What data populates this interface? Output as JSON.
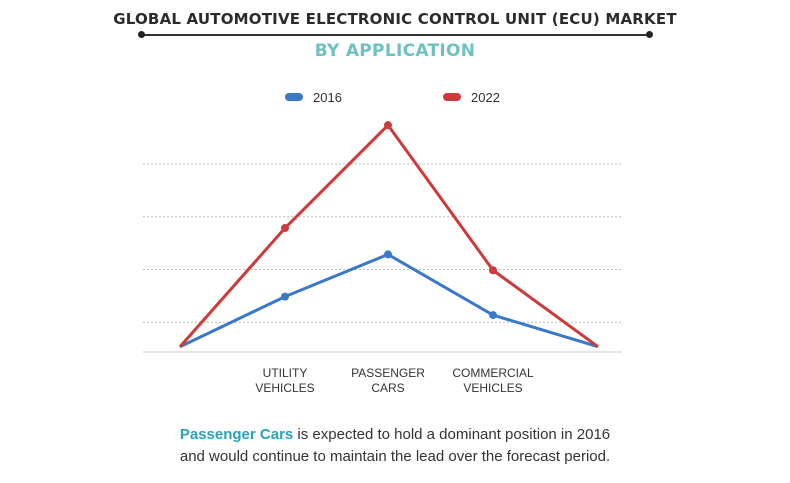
{
  "header": {
    "title": "GLOBAL AUTOMOTIVE ELECTRONIC CONTROL UNIT (ECU) MARKET",
    "subtitle": "BY APPLICATION"
  },
  "caption": {
    "highlight": "Passenger Cars",
    "line1_rest": " is expected to  hold a dominant position in 2016",
    "line2": "and would continue to maintain the lead over the forecast period."
  },
  "colors": {
    "series_2016": "#3a78c9",
    "series_2022": "#cc3a3a",
    "grid": "#bbbbbb",
    "axis": "#cccccc"
  },
  "chart_data": {
    "type": "line",
    "categories": [
      "",
      "UTILITY\nVEHICLES",
      "PASSENGER\nCARS",
      "COMMERCIAL\nVEHICLES",
      ""
    ],
    "series": [
      {
        "name": "2016",
        "values": [
          1,
          10.5,
          18.5,
          7,
          1
        ]
      },
      {
        "name": "2022",
        "values": [
          1,
          23.5,
          43,
          15.5,
          1
        ]
      }
    ],
    "ylim": [
      0,
      40
    ],
    "grid": true,
    "legend": "top-center",
    "xlabel": "",
    "ylabel": ""
  }
}
